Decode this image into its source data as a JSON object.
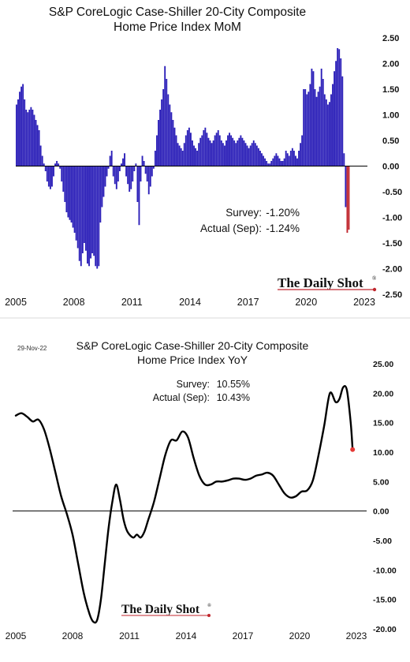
{
  "chart_data": [
    {
      "type": "bar",
      "title": [
        "S&P CoreLogic Case-Shiller 20-City Composite",
        "Home Price Index MoM"
      ],
      "ylim": [
        -2.5,
        2.5
      ],
      "yticks": [
        "2.50",
        "2.00",
        "1.50",
        "1.00",
        "0.50",
        "0.00",
        "-0.50",
        "-1.00",
        "-1.50",
        "-2.00",
        "-2.50"
      ],
      "xticks": [
        "2005",
        "2008",
        "2011",
        "2014",
        "2017",
        "2020",
        "2023"
      ],
      "x_range_years": [
        2005,
        2023
      ],
      "first_month": "2005-01",
      "bar_color": "#2b1fb8",
      "highlight_color": "#c0262d",
      "highlight_last_n": 2,
      "values": [
        1.2,
        1.3,
        1.45,
        1.55,
        1.6,
        1.3,
        1.1,
        1.05,
        1.1,
        1.15,
        1.1,
        1.0,
        0.9,
        0.8,
        0.7,
        0.4,
        0.2,
        0.05,
        -0.1,
        -0.3,
        -0.4,
        -0.45,
        -0.4,
        -0.2,
        0.05,
        0.1,
        0.05,
        -0.05,
        -0.3,
        -0.5,
        -0.7,
        -0.9,
        -1.0,
        -1.05,
        -1.1,
        -1.2,
        -1.3,
        -1.45,
        -1.6,
        -1.85,
        -1.95,
        -1.7,
        -1.5,
        -1.65,
        -1.9,
        -1.95,
        -1.8,
        -1.7,
        -1.75,
        -1.95,
        -2.0,
        -1.95,
        -1.1,
        -0.8,
        -0.6,
        -0.4,
        -0.2,
        -0.05,
        0.2,
        0.3,
        -0.2,
        -0.35,
        -0.45,
        -0.3,
        -0.1,
        0.05,
        0.15,
        0.25,
        -0.2,
        -0.35,
        -0.5,
        -0.45,
        -0.3,
        -0.1,
        0.05,
        -0.7,
        -1.15,
        -0.3,
        0.2,
        0.1,
        -0.15,
        -0.3,
        -0.55,
        -0.4,
        -0.2,
        -0.05,
        0.3,
        0.6,
        0.9,
        1.1,
        1.3,
        1.5,
        1.95,
        1.7,
        1.4,
        1.2,
        1.05,
        0.9,
        0.75,
        0.6,
        0.45,
        0.4,
        0.35,
        0.3,
        0.45,
        0.6,
        0.7,
        0.75,
        0.65,
        0.5,
        0.4,
        0.35,
        0.3,
        0.45,
        0.55,
        0.6,
        0.7,
        0.75,
        0.65,
        0.55,
        0.5,
        0.45,
        0.5,
        0.6,
        0.65,
        0.7,
        0.6,
        0.5,
        0.45,
        0.4,
        0.5,
        0.6,
        0.65,
        0.6,
        0.55,
        0.5,
        0.45,
        0.5,
        0.55,
        0.6,
        0.55,
        0.5,
        0.45,
        0.4,
        0.35,
        0.4,
        0.45,
        0.5,
        0.45,
        0.4,
        0.35,
        0.3,
        0.25,
        0.2,
        0.15,
        0.1,
        0.05,
        0.05,
        0.1,
        0.15,
        0.2,
        0.25,
        0.2,
        0.15,
        0.1,
        0.1,
        0.15,
        0.3,
        0.25,
        0.2,
        0.3,
        0.35,
        0.3,
        0.2,
        0.15,
        0.3,
        0.45,
        0.6,
        1.5,
        1.5,
        1.4,
        1.45,
        1.6,
        1.9,
        1.85,
        1.5,
        1.35,
        1.45,
        1.55,
        1.9,
        1.7,
        1.4,
        1.3,
        1.2,
        1.25,
        1.4,
        1.6,
        1.85,
        2.05,
        2.3,
        2.28,
        2.1,
        1.75,
        0.25,
        -0.8,
        -1.3,
        -1.24
      ],
      "annotations": [
        {
          "label": "Survey:",
          "value": "-1.20%"
        },
        {
          "label": "Actual (Sep):",
          "value": "-1.24%"
        }
      ],
      "watermark": "The Daily Shot"
    },
    {
      "type": "line",
      "date_label": "29-Nov-22",
      "title": [
        "S&P CoreLogic Case-Shiller 20-City Composite",
        "Home Price Index YoY"
      ],
      "ylim": [
        -20,
        25
      ],
      "yticks": [
        "25.00",
        "20.00",
        "15.00",
        "10.00",
        "5.00",
        "0.00",
        "-5.00",
        "-10.00",
        "-15.00",
        "-20.00"
      ],
      "xticks": [
        "2005",
        "2008",
        "2011",
        "2014",
        "2017",
        "2020",
        "2023"
      ],
      "x_range_years": [
        2005,
        2023
      ],
      "line_color": "#000000",
      "endpoint_color": "#e53935",
      "points": [
        [
          2005.0,
          16.2
        ],
        [
          2005.3,
          16.6
        ],
        [
          2005.6,
          16.0
        ],
        [
          2005.9,
          15.2
        ],
        [
          2006.2,
          15.5
        ],
        [
          2006.5,
          13.8
        ],
        [
          2006.8,
          10.5
        ],
        [
          2007.1,
          6.5
        ],
        [
          2007.4,
          2.5
        ],
        [
          2007.7,
          -0.5
        ],
        [
          2008.0,
          -4.0
        ],
        [
          2008.3,
          -9.0
        ],
        [
          2008.6,
          -14.0
        ],
        [
          2008.9,
          -17.5
        ],
        [
          2009.1,
          -18.8
        ],
        [
          2009.3,
          -18.5
        ],
        [
          2009.5,
          -15.0
        ],
        [
          2009.7,
          -9.0
        ],
        [
          2009.9,
          -3.0
        ],
        [
          2010.1,
          1.5
        ],
        [
          2010.3,
          4.5
        ],
        [
          2010.5,
          2.0
        ],
        [
          2010.7,
          -1.5
        ],
        [
          2010.9,
          -3.5
        ],
        [
          2011.2,
          -4.5
        ],
        [
          2011.4,
          -4.0
        ],
        [
          2011.6,
          -4.5
        ],
        [
          2011.8,
          -3.5
        ],
        [
          2012.0,
          -1.5
        ],
        [
          2012.3,
          1.5
        ],
        [
          2012.6,
          5.5
        ],
        [
          2012.9,
          9.5
        ],
        [
          2013.2,
          12.0
        ],
        [
          2013.5,
          12.0
        ],
        [
          2013.8,
          13.5
        ],
        [
          2014.1,
          12.5
        ],
        [
          2014.4,
          9.0
        ],
        [
          2014.7,
          6.0
        ],
        [
          2015.0,
          4.5
        ],
        [
          2015.3,
          4.5
        ],
        [
          2015.6,
          5.0
        ],
        [
          2015.9,
          5.0
        ],
        [
          2016.2,
          5.2
        ],
        [
          2016.5,
          5.5
        ],
        [
          2016.8,
          5.5
        ],
        [
          2017.1,
          5.3
        ],
        [
          2017.4,
          5.5
        ],
        [
          2017.7,
          6.0
        ],
        [
          2018.0,
          6.2
        ],
        [
          2018.3,
          6.5
        ],
        [
          2018.6,
          6.0
        ],
        [
          2018.9,
          4.5
        ],
        [
          2019.2,
          3.0
        ],
        [
          2019.5,
          2.3
        ],
        [
          2019.8,
          2.5
        ],
        [
          2020.1,
          3.3
        ],
        [
          2020.4,
          3.5
        ],
        [
          2020.7,
          5.2
        ],
        [
          2021.0,
          9.5
        ],
        [
          2021.3,
          14.5
        ],
        [
          2021.6,
          20.0
        ],
        [
          2021.9,
          18.5
        ],
        [
          2022.1,
          19.0
        ],
        [
          2022.3,
          21.0
        ],
        [
          2022.5,
          20.5
        ],
        [
          2022.7,
          15.0
        ],
        [
          2022.8,
          10.43
        ]
      ],
      "annotations": [
        {
          "label": "Survey:",
          "value": "10.55%"
        },
        {
          "label": "Actual (Sep):",
          "value": "10.43%"
        }
      ],
      "watermark": "The Daily Shot"
    }
  ]
}
